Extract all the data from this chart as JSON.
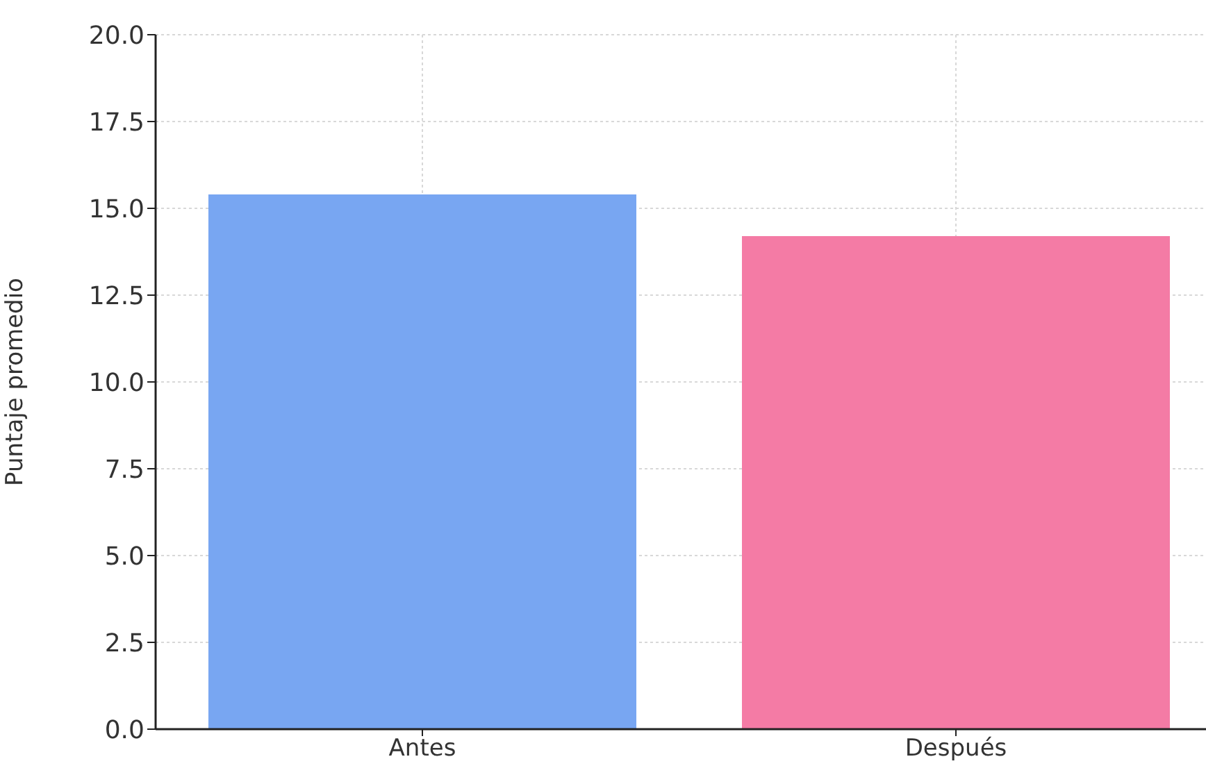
{
  "chart_data": {
    "type": "bar",
    "ylabel": "Puntaje promedio",
    "categories": [
      "Antes",
      "Después"
    ],
    "values": [
      15.4,
      14.2
    ],
    "colors": [
      "#78a6f2",
      "#f47ba5"
    ],
    "ylim": [
      0,
      20
    ],
    "yticks": [
      {
        "value": 0,
        "label": "0.0"
      },
      {
        "value": 2.5,
        "label": "2.5"
      },
      {
        "value": 5,
        "label": "5.0"
      },
      {
        "value": 7.5,
        "label": "7.5"
      },
      {
        "value": 10,
        "label": "10.0"
      },
      {
        "value": 12.5,
        "label": "12.5"
      },
      {
        "value": 15,
        "label": "15.0"
      },
      {
        "value": 17.5,
        "label": "17.5"
      },
      {
        "value": 20,
        "label": "20.0"
      }
    ],
    "grid": true
  }
}
